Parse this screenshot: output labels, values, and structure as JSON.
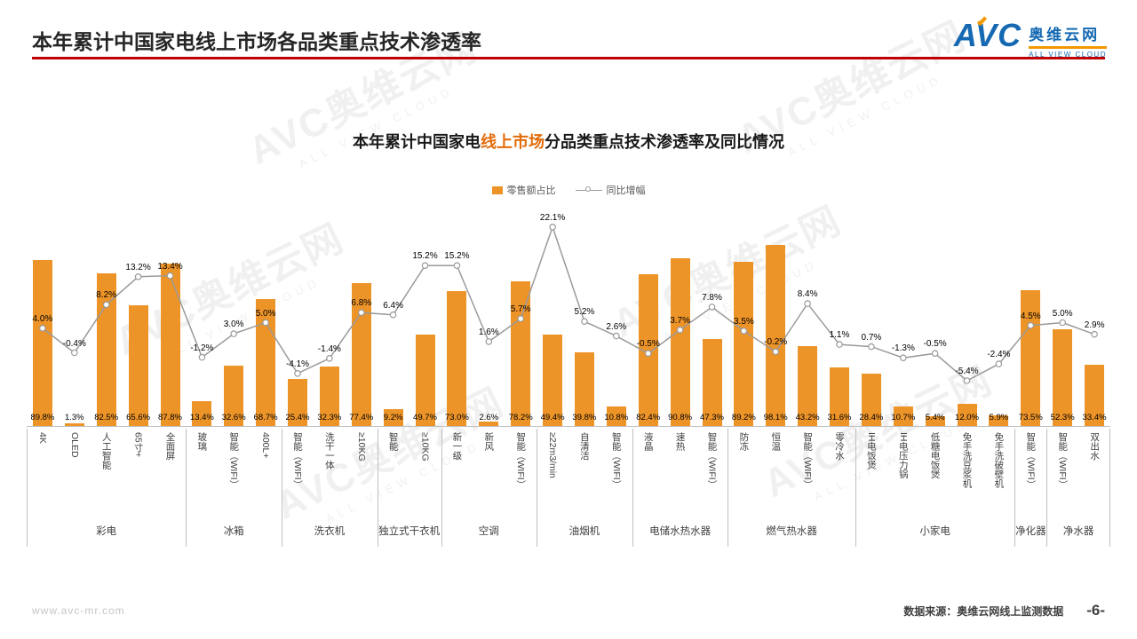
{
  "header": {
    "title": "本年累计中国家电线上市场各品类重点技术渗透率"
  },
  "logo": {
    "avc": "AVC",
    "name": "奥维云网",
    "sub": "ALL VIEW CLOUD"
  },
  "watermark": {
    "line1": "AVC奥维云网",
    "line2": "ALL VIEW CLOUD"
  },
  "footer": {
    "site": "www.avc-mr.com",
    "source": "数据来源：奥维云网线上监测数据",
    "page": "-6-"
  },
  "chart_data": {
    "type": "bar+line",
    "title_parts": [
      "本年累计中国家电",
      "线上市场",
      "分品类重点技术渗透率及同比情况"
    ],
    "legend": [
      {
        "label": "零售额占比",
        "type": "bar",
        "color": "#ED9428"
      },
      {
        "label": "同比增幅",
        "type": "line",
        "color": "#9A9A9A"
      }
    ],
    "colors": {
      "bar": "#ED9428",
      "line": "#9A9A9A"
    },
    "bar_axis": {
      "min": 0,
      "max": 100,
      "unit": "%"
    },
    "line_axis": {
      "min": -8,
      "max": 24,
      "unit": "%"
    },
    "grid": "off",
    "series_names": {
      "bar": "零售额占比",
      "line": "同比增幅"
    },
    "groups": [
      {
        "name": "彩电",
        "items": [
          {
            "label": "4K",
            "bar": 89.8,
            "line": 4.0
          },
          {
            "label": "OLED",
            "bar": 1.3,
            "line": -0.4
          },
          {
            "label": "人工智能",
            "bar": 82.5,
            "line": 8.2
          },
          {
            "label": "65寸+",
            "bar": 65.6,
            "line": 13.2
          },
          {
            "label": "全面屏",
            "bar": 87.8,
            "line": 13.4
          }
        ]
      },
      {
        "name": "冰箱",
        "items": [
          {
            "label": "玻璃",
            "bar": 13.4,
            "line": -1.2
          },
          {
            "label": "智能（WIFI）",
            "bar": 32.6,
            "line": 3.0
          },
          {
            "label": "400L+",
            "bar": 68.7,
            "line": 5.0
          }
        ]
      },
      {
        "name": "洗衣机",
        "items": [
          {
            "label": "智能（WIFI）",
            "bar": 25.4,
            "line": -4.1
          },
          {
            "label": "洗干一体",
            "bar": 32.3,
            "line": -1.4
          },
          {
            "label": "≥10KG",
            "bar": 77.4,
            "line": 6.8
          }
        ]
      },
      {
        "name": "独立式干衣机",
        "items": [
          {
            "label": "智能",
            "bar": 9.2,
            "line": 6.4
          },
          {
            "label": "≥10KG",
            "bar": 49.7,
            "line": 15.2
          }
        ]
      },
      {
        "name": "空调",
        "items": [
          {
            "label": "新一级",
            "bar": 73.0,
            "line": 15.2
          },
          {
            "label": "新风",
            "bar": 2.6,
            "line": 1.6
          },
          {
            "label": "智能（WIFI）",
            "bar": 78.2,
            "line": 5.7
          }
        ]
      },
      {
        "name": "油烟机",
        "items": [
          {
            "label": "≥22m3/min",
            "bar": 49.4,
            "line": 22.1
          },
          {
            "label": "自清洁",
            "bar": 39.8,
            "line": 5.2
          },
          {
            "label": "智能（WIFI）",
            "bar": 10.8,
            "line": 2.6
          }
        ]
      },
      {
        "name": "电储水热水器",
        "items": [
          {
            "label": "液晶",
            "bar": 82.4,
            "line": -0.5
          },
          {
            "label": "速热",
            "bar": 90.8,
            "line": 3.7
          },
          {
            "label": "智能（WIFI）",
            "bar": 47.3,
            "line": 7.8
          }
        ]
      },
      {
        "name": "燃气热水器",
        "items": [
          {
            "label": "防冻",
            "bar": 89.2,
            "line": 3.5
          },
          {
            "label": "恒温",
            "bar": 98.1,
            "line": -0.2
          },
          {
            "label": "智能（WIFI）",
            "bar": 43.2,
            "line": 8.4
          },
          {
            "label": "零冷水",
            "bar": 31.6,
            "line": 1.1
          }
        ]
      },
      {
        "name": "小家电",
        "items": [
          {
            "label": "IH电饭煲",
            "bar": 28.4,
            "line": 0.7
          },
          {
            "label": "IH电压力锅",
            "bar": 10.7,
            "line": -1.3
          },
          {
            "label": "低糖电饭煲",
            "bar": 5.4,
            "line": -0.5
          },
          {
            "label": "免手洗豆浆机",
            "bar": 12.0,
            "line": -5.4
          },
          {
            "label": "免手洗破壁机",
            "bar": 5.9,
            "line": -2.4
          }
        ]
      },
      {
        "name": "净化器",
        "items": [
          {
            "label": "智能（WIFI）",
            "bar": 73.5,
            "line": 4.5
          }
        ]
      },
      {
        "name": "净水器",
        "items": [
          {
            "label": "智能（WIFI）",
            "bar": 52.3,
            "line": 5.0
          },
          {
            "label": "双出水",
            "bar": 33.4,
            "line": 2.9
          }
        ]
      }
    ]
  }
}
